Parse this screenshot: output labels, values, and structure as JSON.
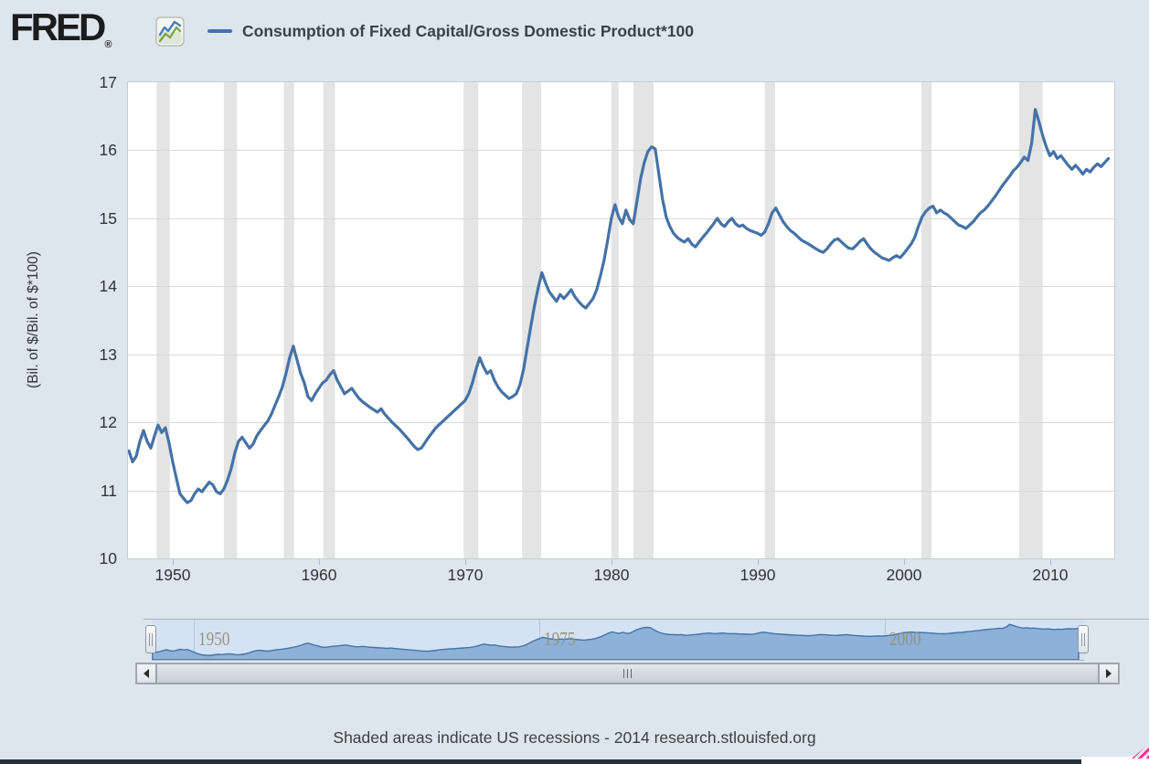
{
  "header": {
    "logo_text": "FRED",
    "registered_mark": "®"
  },
  "chart_data": {
    "type": "line",
    "title": "Consumption of Fixed Capital/Gross Domestic Product*100",
    "xlabel": "",
    "ylabel": "(Bil. of $/Bil. of $*100)",
    "xlim": [
      1946.94,
      2014.4
    ],
    "ylim": [
      10,
      17
    ],
    "x_ticks": [
      1950,
      1960,
      1970,
      1980,
      1990,
      2000,
      2010
    ],
    "y_ticks": [
      10,
      11,
      12,
      13,
      14,
      15,
      16,
      17
    ],
    "grid": true,
    "legend_position": "top",
    "line_color": "#4572a7",
    "recession_band_color": "#e4e4e4",
    "recessions": [
      [
        1948.9,
        1949.8
      ],
      [
        1953.5,
        1954.4
      ],
      [
        1957.6,
        1958.3
      ],
      [
        1960.3,
        1961.1
      ],
      [
        1969.9,
        1970.9
      ],
      [
        1973.9,
        1975.2
      ],
      [
        1980.0,
        1980.5
      ],
      [
        1981.5,
        1982.9
      ],
      [
        1990.5,
        1991.2
      ],
      [
        2001.2,
        2001.9
      ],
      [
        2007.9,
        2009.5
      ]
    ],
    "series": [
      {
        "name": "Consumption of Fixed Capital/Gross Domestic Product*100",
        "points": [
          [
            1947.0,
            11.58
          ],
          [
            1947.25,
            11.42
          ],
          [
            1947.5,
            11.5
          ],
          [
            1947.75,
            11.72
          ],
          [
            1948.0,
            11.88
          ],
          [
            1948.25,
            11.72
          ],
          [
            1948.5,
            11.62
          ],
          [
            1948.75,
            11.8
          ],
          [
            1949.0,
            11.96
          ],
          [
            1949.25,
            11.85
          ],
          [
            1949.5,
            11.92
          ],
          [
            1949.75,
            11.7
          ],
          [
            1950.0,
            11.42
          ],
          [
            1950.25,
            11.18
          ],
          [
            1950.5,
            10.95
          ],
          [
            1950.75,
            10.88
          ],
          [
            1951.0,
            10.82
          ],
          [
            1951.25,
            10.85
          ],
          [
            1951.5,
            10.95
          ],
          [
            1951.75,
            11.02
          ],
          [
            1952.0,
            10.98
          ],
          [
            1952.25,
            11.05
          ],
          [
            1952.5,
            11.12
          ],
          [
            1952.75,
            11.08
          ],
          [
            1953.0,
            10.98
          ],
          [
            1953.25,
            10.95
          ],
          [
            1953.5,
            11.02
          ],
          [
            1953.75,
            11.15
          ],
          [
            1954.0,
            11.32
          ],
          [
            1954.25,
            11.55
          ],
          [
            1954.5,
            11.72
          ],
          [
            1954.75,
            11.78
          ],
          [
            1955.0,
            11.7
          ],
          [
            1955.25,
            11.62
          ],
          [
            1955.5,
            11.68
          ],
          [
            1955.75,
            11.8
          ],
          [
            1956.0,
            11.88
          ],
          [
            1956.25,
            11.95
          ],
          [
            1956.5,
            12.02
          ],
          [
            1956.75,
            12.12
          ],
          [
            1957.0,
            12.25
          ],
          [
            1957.25,
            12.38
          ],
          [
            1957.5,
            12.52
          ],
          [
            1957.75,
            12.72
          ],
          [
            1958.0,
            12.95
          ],
          [
            1958.25,
            13.12
          ],
          [
            1958.5,
            12.92
          ],
          [
            1958.75,
            12.72
          ],
          [
            1959.0,
            12.58
          ],
          [
            1959.25,
            12.38
          ],
          [
            1959.5,
            12.32
          ],
          [
            1959.75,
            12.42
          ],
          [
            1960.0,
            12.5
          ],
          [
            1960.25,
            12.58
          ],
          [
            1960.5,
            12.62
          ],
          [
            1960.75,
            12.7
          ],
          [
            1961.0,
            12.76
          ],
          [
            1961.25,
            12.62
          ],
          [
            1961.5,
            12.52
          ],
          [
            1961.75,
            12.42
          ],
          [
            1962.0,
            12.46
          ],
          [
            1962.25,
            12.5
          ],
          [
            1962.5,
            12.42
          ],
          [
            1962.75,
            12.35
          ],
          [
            1963.0,
            12.3
          ],
          [
            1963.5,
            12.22
          ],
          [
            1964.0,
            12.15
          ],
          [
            1964.25,
            12.2
          ],
          [
            1964.5,
            12.12
          ],
          [
            1965.0,
            12.0
          ],
          [
            1965.5,
            11.9
          ],
          [
            1966.0,
            11.78
          ],
          [
            1966.5,
            11.65
          ],
          [
            1966.75,
            11.6
          ],
          [
            1967.0,
            11.62
          ],
          [
            1967.25,
            11.7
          ],
          [
            1967.5,
            11.78
          ],
          [
            1968.0,
            11.92
          ],
          [
            1968.5,
            12.02
          ],
          [
            1969.0,
            12.12
          ],
          [
            1969.5,
            12.22
          ],
          [
            1970.0,
            12.32
          ],
          [
            1970.25,
            12.42
          ],
          [
            1970.5,
            12.58
          ],
          [
            1970.75,
            12.78
          ],
          [
            1971.0,
            12.95
          ],
          [
            1971.25,
            12.82
          ],
          [
            1971.5,
            12.72
          ],
          [
            1971.75,
            12.76
          ],
          [
            1972.0,
            12.62
          ],
          [
            1972.25,
            12.52
          ],
          [
            1972.5,
            12.45
          ],
          [
            1972.75,
            12.4
          ],
          [
            1973.0,
            12.35
          ],
          [
            1973.25,
            12.38
          ],
          [
            1973.5,
            12.42
          ],
          [
            1973.75,
            12.55
          ],
          [
            1974.0,
            12.78
          ],
          [
            1974.25,
            13.1
          ],
          [
            1974.5,
            13.42
          ],
          [
            1974.75,
            13.72
          ],
          [
            1975.0,
            13.98
          ],
          [
            1975.25,
            14.2
          ],
          [
            1975.5,
            14.05
          ],
          [
            1975.75,
            13.92
          ],
          [
            1976.0,
            13.85
          ],
          [
            1976.25,
            13.78
          ],
          [
            1976.5,
            13.88
          ],
          [
            1976.75,
            13.82
          ],
          [
            1977.0,
            13.88
          ],
          [
            1977.25,
            13.95
          ],
          [
            1977.5,
            13.85
          ],
          [
            1977.75,
            13.78
          ],
          [
            1978.0,
            13.72
          ],
          [
            1978.25,
            13.68
          ],
          [
            1978.5,
            13.75
          ],
          [
            1978.75,
            13.82
          ],
          [
            1979.0,
            13.95
          ],
          [
            1979.25,
            14.15
          ],
          [
            1979.5,
            14.38
          ],
          [
            1979.75,
            14.68
          ],
          [
            1980.0,
            15.0
          ],
          [
            1980.25,
            15.2
          ],
          [
            1980.5,
            15.02
          ],
          [
            1980.75,
            14.92
          ],
          [
            1981.0,
            15.12
          ],
          [
            1981.25,
            14.98
          ],
          [
            1981.5,
            14.92
          ],
          [
            1981.75,
            15.25
          ],
          [
            1982.0,
            15.58
          ],
          [
            1982.25,
            15.82
          ],
          [
            1982.5,
            15.98
          ],
          [
            1982.75,
            16.05
          ],
          [
            1983.0,
            16.02
          ],
          [
            1983.25,
            15.65
          ],
          [
            1983.5,
            15.28
          ],
          [
            1983.75,
            15.02
          ],
          [
            1984.0,
            14.88
          ],
          [
            1984.25,
            14.78
          ],
          [
            1984.5,
            14.72
          ],
          [
            1984.75,
            14.68
          ],
          [
            1985.0,
            14.65
          ],
          [
            1985.25,
            14.7
          ],
          [
            1985.5,
            14.62
          ],
          [
            1985.75,
            14.58
          ],
          [
            1986.0,
            14.65
          ],
          [
            1986.25,
            14.72
          ],
          [
            1986.5,
            14.78
          ],
          [
            1986.75,
            14.85
          ],
          [
            1987.0,
            14.92
          ],
          [
            1987.25,
            15.0
          ],
          [
            1987.5,
            14.92
          ],
          [
            1987.75,
            14.88
          ],
          [
            1988.0,
            14.95
          ],
          [
            1988.25,
            15.0
          ],
          [
            1988.5,
            14.92
          ],
          [
            1988.75,
            14.88
          ],
          [
            1989.0,
            14.9
          ],
          [
            1989.25,
            14.85
          ],
          [
            1989.5,
            14.82
          ],
          [
            1990.0,
            14.78
          ],
          [
            1990.25,
            14.75
          ],
          [
            1990.5,
            14.8
          ],
          [
            1990.75,
            14.92
          ],
          [
            1991.0,
            15.08
          ],
          [
            1991.25,
            15.15
          ],
          [
            1991.5,
            15.05
          ],
          [
            1991.75,
            14.95
          ],
          [
            1992.0,
            14.88
          ],
          [
            1992.25,
            14.82
          ],
          [
            1992.5,
            14.78
          ],
          [
            1993.0,
            14.68
          ],
          [
            1993.5,
            14.62
          ],
          [
            1994.0,
            14.55
          ],
          [
            1994.25,
            14.52
          ],
          [
            1994.5,
            14.5
          ],
          [
            1994.75,
            14.55
          ],
          [
            1995.0,
            14.62
          ],
          [
            1995.25,
            14.68
          ],
          [
            1995.5,
            14.7
          ],
          [
            1995.75,
            14.65
          ],
          [
            1996.0,
            14.6
          ],
          [
            1996.25,
            14.56
          ],
          [
            1996.5,
            14.55
          ],
          [
            1996.75,
            14.6
          ],
          [
            1997.0,
            14.66
          ],
          [
            1997.25,
            14.7
          ],
          [
            1997.5,
            14.62
          ],
          [
            1997.75,
            14.55
          ],
          [
            1998.0,
            14.5
          ],
          [
            1998.25,
            14.46
          ],
          [
            1998.5,
            14.42
          ],
          [
            1998.75,
            14.4
          ],
          [
            1999.0,
            14.38
          ],
          [
            1999.25,
            14.42
          ],
          [
            1999.5,
            14.45
          ],
          [
            1999.75,
            14.42
          ],
          [
            2000.0,
            14.48
          ],
          [
            2000.25,
            14.55
          ],
          [
            2000.5,
            14.62
          ],
          [
            2000.75,
            14.72
          ],
          [
            2001.0,
            14.88
          ],
          [
            2001.25,
            15.02
          ],
          [
            2001.5,
            15.1
          ],
          [
            2001.75,
            15.15
          ],
          [
            2002.0,
            15.18
          ],
          [
            2002.25,
            15.08
          ],
          [
            2002.5,
            15.12
          ],
          [
            2002.75,
            15.08
          ],
          [
            2003.0,
            15.05
          ],
          [
            2003.25,
            15.0
          ],
          [
            2003.5,
            14.95
          ],
          [
            2003.75,
            14.9
          ],
          [
            2004.0,
            14.88
          ],
          [
            2004.25,
            14.85
          ],
          [
            2004.5,
            14.9
          ],
          [
            2004.75,
            14.95
          ],
          [
            2005.0,
            15.02
          ],
          [
            2005.25,
            15.08
          ],
          [
            2005.5,
            15.12
          ],
          [
            2005.75,
            15.18
          ],
          [
            2006.0,
            15.25
          ],
          [
            2006.25,
            15.32
          ],
          [
            2006.5,
            15.4
          ],
          [
            2006.75,
            15.48
          ],
          [
            2007.0,
            15.55
          ],
          [
            2007.25,
            15.62
          ],
          [
            2007.5,
            15.7
          ],
          [
            2007.75,
            15.75
          ],
          [
            2008.0,
            15.82
          ],
          [
            2008.25,
            15.9
          ],
          [
            2008.5,
            15.85
          ],
          [
            2008.75,
            16.1
          ],
          [
            2009.0,
            16.6
          ],
          [
            2009.25,
            16.42
          ],
          [
            2009.5,
            16.22
          ],
          [
            2009.75,
            16.05
          ],
          [
            2010.0,
            15.92
          ],
          [
            2010.25,
            15.98
          ],
          [
            2010.5,
            15.88
          ],
          [
            2010.75,
            15.92
          ],
          [
            2011.0,
            15.85
          ],
          [
            2011.25,
            15.78
          ],
          [
            2011.5,
            15.72
          ],
          [
            2011.75,
            15.78
          ],
          [
            2012.0,
            15.72
          ],
          [
            2012.25,
            15.65
          ],
          [
            2012.5,
            15.72
          ],
          [
            2012.75,
            15.68
          ],
          [
            2013.0,
            15.75
          ],
          [
            2013.25,
            15.8
          ],
          [
            2013.5,
            15.76
          ],
          [
            2013.75,
            15.82
          ],
          [
            2014.0,
            15.88
          ]
        ]
      }
    ]
  },
  "navigator": {
    "year_labels": [
      1950,
      1975,
      2000
    ],
    "vmin": 10,
    "vmax": 17.5,
    "background": "#d4e3f3",
    "area_fill": "#8db1d8",
    "line_color": "#4572a7",
    "label_color": "#99917f"
  },
  "footer": {
    "note": "Shaded areas indicate US recessions - 2014 research.stlouisfed.org"
  },
  "colors": {
    "background": "#dde6ef",
    "plot_background": "#ffffff",
    "gridline": "#d9d9d9",
    "axis_label": "#333333",
    "tick_mark": "#a7bdd3",
    "title_text": "#36434c",
    "logo_icon_blue": "#4a7ebb",
    "logo_icon_green": "#80a546",
    "resize_grip": "#ff2d8e",
    "bottom_border": "#25313d"
  }
}
